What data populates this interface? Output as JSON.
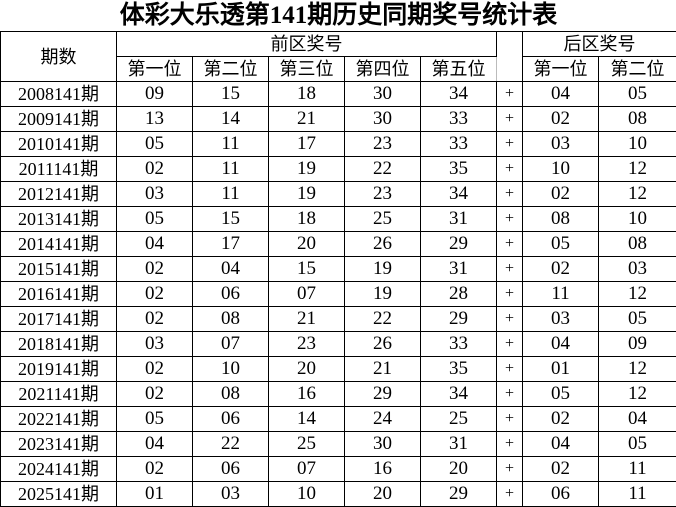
{
  "title": "体彩大乐透第141期历史同期奖号统计表",
  "header": {
    "period": "期数",
    "front_zone": "前区奖号",
    "back_zone": "后区奖号",
    "front_positions": [
      "第一位",
      "第二位",
      "第三位",
      "第四位",
      "第五位"
    ],
    "back_positions": [
      "第一位",
      "第二位"
    ]
  },
  "separator": "+",
  "rows": [
    {
      "period": "2008141期",
      "front": [
        "09",
        "15",
        "18",
        "30",
        "34"
      ],
      "back": [
        "04",
        "05"
      ]
    },
    {
      "period": "2009141期",
      "front": [
        "13",
        "14",
        "21",
        "30",
        "33"
      ],
      "back": [
        "02",
        "08"
      ]
    },
    {
      "period": "2010141期",
      "front": [
        "05",
        "11",
        "17",
        "23",
        "33"
      ],
      "back": [
        "03",
        "10"
      ]
    },
    {
      "period": "2011141期",
      "front": [
        "02",
        "11",
        "19",
        "22",
        "35"
      ],
      "back": [
        "10",
        "12"
      ]
    },
    {
      "period": "2012141期",
      "front": [
        "03",
        "11",
        "19",
        "23",
        "34"
      ],
      "back": [
        "02",
        "12"
      ]
    },
    {
      "period": "2013141期",
      "front": [
        "05",
        "15",
        "18",
        "25",
        "31"
      ],
      "back": [
        "08",
        "10"
      ]
    },
    {
      "period": "2014141期",
      "front": [
        "04",
        "17",
        "20",
        "26",
        "29"
      ],
      "back": [
        "05",
        "08"
      ]
    },
    {
      "period": "2015141期",
      "front": [
        "02",
        "04",
        "15",
        "19",
        "31"
      ],
      "back": [
        "02",
        "03"
      ]
    },
    {
      "period": "2016141期",
      "front": [
        "02",
        "06",
        "07",
        "19",
        "28"
      ],
      "back": [
        "11",
        "12"
      ]
    },
    {
      "period": "2017141期",
      "front": [
        "02",
        "08",
        "21",
        "22",
        "29"
      ],
      "back": [
        "03",
        "05"
      ]
    },
    {
      "period": "2018141期",
      "front": [
        "03",
        "07",
        "23",
        "26",
        "33"
      ],
      "back": [
        "04",
        "09"
      ]
    },
    {
      "period": "2019141期",
      "front": [
        "02",
        "10",
        "20",
        "21",
        "35"
      ],
      "back": [
        "01",
        "12"
      ]
    },
    {
      "period": "2021141期",
      "front": [
        "02",
        "08",
        "16",
        "29",
        "34"
      ],
      "back": [
        "05",
        "12"
      ]
    },
    {
      "period": "2022141期",
      "front": [
        "05",
        "06",
        "14",
        "24",
        "25"
      ],
      "back": [
        "02",
        "04"
      ]
    },
    {
      "period": "2023141期",
      "front": [
        "04",
        "22",
        "25",
        "30",
        "31"
      ],
      "back": [
        "04",
        "05"
      ]
    },
    {
      "period": "2024141期",
      "front": [
        "02",
        "06",
        "07",
        "16",
        "20"
      ],
      "back": [
        "02",
        "11"
      ]
    },
    {
      "period": "2025141期",
      "front": [
        "01",
        "03",
        "10",
        "20",
        "29"
      ],
      "back": [
        "06",
        "11"
      ]
    }
  ]
}
